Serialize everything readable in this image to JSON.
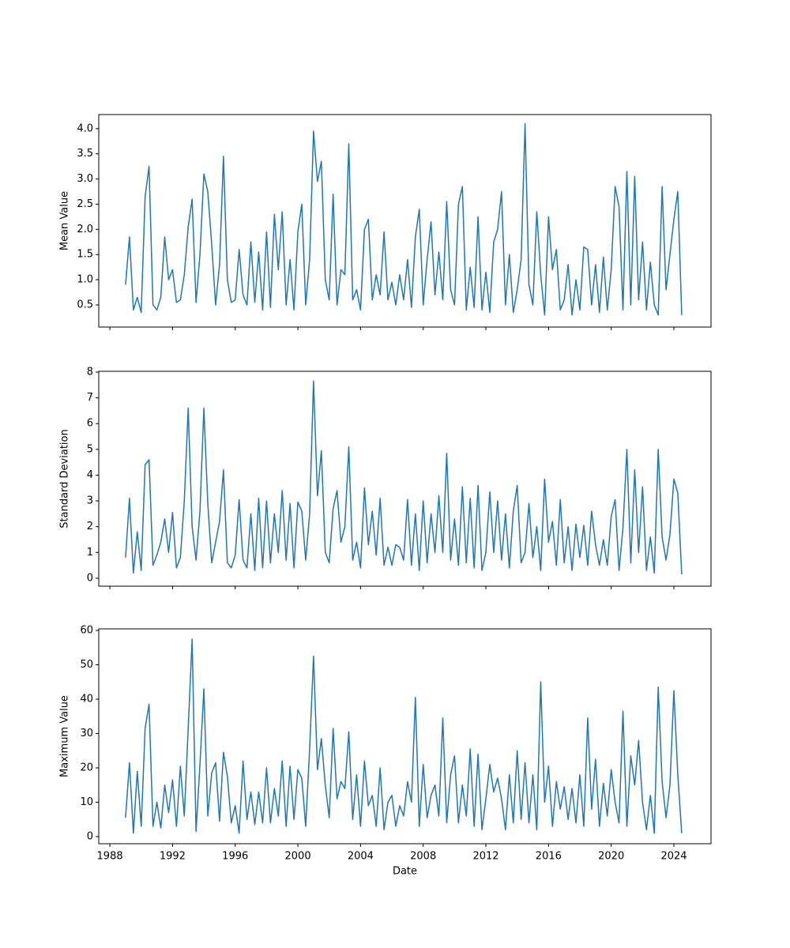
{
  "chart_data": [
    {
      "type": "line",
      "ylabel": "Mean Value",
      "color": "#1f77b4",
      "x": [
        1989,
        1989.25,
        1989.5,
        1989.75,
        1990,
        1990.25,
        1990.5,
        1990.75,
        1991,
        1991.25,
        1991.5,
        1991.75,
        1992,
        1992.25,
        1992.5,
        1992.75,
        1993,
        1993.25,
        1993.5,
        1993.75,
        1994,
        1994.25,
        1994.5,
        1994.75,
        1995,
        1995.25,
        1995.5,
        1995.75,
        1996,
        1996.25,
        1996.5,
        1996.75,
        1997,
        1997.25,
        1997.5,
        1997.75,
        1998,
        1998.25,
        1998.5,
        1998.75,
        1999,
        1999.25,
        1999.5,
        1999.75,
        2000,
        2000.25,
        2000.5,
        2000.75,
        2001,
        2001.25,
        2001.5,
        2001.75,
        2002,
        2002.25,
        2002.5,
        2002.75,
        2003,
        2003.25,
        2003.5,
        2003.75,
        2004,
        2004.25,
        2004.5,
        2004.75,
        2005,
        2005.25,
        2005.5,
        2005.75,
        2006,
        2006.25,
        2006.5,
        2006.75,
        2007,
        2007.25,
        2007.5,
        2007.75,
        2008,
        2008.25,
        2008.5,
        2008.75,
        2009,
        2009.25,
        2009.5,
        2009.75,
        2010,
        2010.25,
        2010.5,
        2010.75,
        2011,
        2011.25,
        2011.5,
        2011.75,
        2012,
        2012.25,
        2012.5,
        2012.75,
        2013,
        2013.25,
        2013.5,
        2013.75,
        2014,
        2014.25,
        2014.5,
        2014.75,
        2015,
        2015.25,
        2015.5,
        2015.75,
        2016,
        2016.25,
        2016.5,
        2016.75,
        2017,
        2017.25,
        2017.5,
        2017.75,
        2018,
        2018.25,
        2018.5,
        2018.75,
        2019,
        2019.25,
        2019.5,
        2019.75,
        2020,
        2020.25,
        2020.5,
        2020.75,
        2021,
        2021.25,
        2021.5,
        2021.75,
        2022,
        2022.25,
        2022.5,
        2022.75,
        2023,
        2023.25,
        2023.5,
        2023.75,
        2024,
        2024.25,
        2024.5
      ],
      "values": [
        0.9,
        1.85,
        0.4,
        0.65,
        0.35,
        2.65,
        3.25,
        0.5,
        0.4,
        0.65,
        1.85,
        1.0,
        1.2,
        0.55,
        0.6,
        1.1,
        2.05,
        2.6,
        0.55,
        1.5,
        3.1,
        2.75,
        1.7,
        0.5,
        1.3,
        3.45,
        1.0,
        0.55,
        0.6,
        1.6,
        0.7,
        0.5,
        1.75,
        0.55,
        1.55,
        0.4,
        1.95,
        0.45,
        2.3,
        1.2,
        2.35,
        0.5,
        1.4,
        0.4,
        1.95,
        2.5,
        0.5,
        1.4,
        3.95,
        2.95,
        3.35,
        1.0,
        0.6,
        2.7,
        0.5,
        1.2,
        1.1,
        3.7,
        0.6,
        0.8,
        0.4,
        2.0,
        2.2,
        0.6,
        1.1,
        0.7,
        1.95,
        0.6,
        0.95,
        0.5,
        1.1,
        0.6,
        1.4,
        0.45,
        1.85,
        2.4,
        0.5,
        1.4,
        2.15,
        0.7,
        1.55,
        0.6,
        2.55,
        0.8,
        0.5,
        2.5,
        2.85,
        0.4,
        1.25,
        0.45,
        2.25,
        0.4,
        1.15,
        0.35,
        1.75,
        2.0,
        2.75,
        0.5,
        1.5,
        0.35,
        0.8,
        1.4,
        4.1,
        0.9,
        0.5,
        2.35,
        1.1,
        0.3,
        2.25,
        1.2,
        1.6,
        0.4,
        0.6,
        1.3,
        0.3,
        1.0,
        0.4,
        1.65,
        1.6,
        0.5,
        1.3,
        0.35,
        1.45,
        0.4,
        1.2,
        2.85,
        2.45,
        0.4,
        3.15,
        0.5,
        3.05,
        0.6,
        1.75,
        0.4,
        1.35,
        0.5,
        0.3,
        2.85,
        0.8,
        1.5,
        2.2,
        2.75,
        0.3
      ],
      "ylim": [
        0.06,
        4.28
      ],
      "yticks": [
        0.5,
        {
          "value": 1,
          "label": "1.0"
        },
        1.5,
        {
          "value": 2,
          "label": "2.0"
        },
        2.5,
        {
          "value": 3,
          "label": "3.0"
        },
        3.5,
        {
          "value": 4,
          "label": "4.0"
        }
      ]
    },
    {
      "type": "line",
      "ylabel": "Standard Deviation",
      "color": "#1f77b4",
      "x": [
        1989,
        1989.25,
        1989.5,
        1989.75,
        1990,
        1990.25,
        1990.5,
        1990.75,
        1991,
        1991.25,
        1991.5,
        1991.75,
        1992,
        1992.25,
        1992.5,
        1992.75,
        1993,
        1993.25,
        1993.5,
        1993.75,
        1994,
        1994.25,
        1994.5,
        1994.75,
        1995,
        1995.25,
        1995.5,
        1995.75,
        1996,
        1996.25,
        1996.5,
        1996.75,
        1997,
        1997.25,
        1997.5,
        1997.75,
        1998,
        1998.25,
        1998.5,
        1998.75,
        1999,
        1999.25,
        1999.5,
        1999.75,
        2000,
        2000.25,
        2000.5,
        2000.75,
        2001,
        2001.25,
        2001.5,
        2001.75,
        2002,
        2002.25,
        2002.5,
        2002.75,
        2003,
        2003.25,
        2003.5,
        2003.75,
        2004,
        2004.25,
        2004.5,
        2004.75,
        2005,
        2005.25,
        2005.5,
        2005.75,
        2006,
        2006.25,
        2006.5,
        2006.75,
        2007,
        2007.25,
        2007.5,
        2007.75,
        2008,
        2008.25,
        2008.5,
        2008.75,
        2009,
        2009.25,
        2009.5,
        2009.75,
        2010,
        2010.25,
        2010.5,
        2010.75,
        2011,
        2011.25,
        2011.5,
        2011.75,
        2012,
        2012.25,
        2012.5,
        2012.75,
        2013,
        2013.25,
        2013.5,
        2013.75,
        2014,
        2014.25,
        2014.5,
        2014.75,
        2015,
        2015.25,
        2015.5,
        2015.75,
        2016,
        2016.25,
        2016.5,
        2016.75,
        2017,
        2017.25,
        2017.5,
        2017.75,
        2018,
        2018.25,
        2018.5,
        2018.75,
        2019,
        2019.25,
        2019.5,
        2019.75,
        2020,
        2020.25,
        2020.5,
        2020.75,
        2021,
        2021.25,
        2021.5,
        2021.75,
        2022,
        2022.25,
        2022.5,
        2022.75,
        2023,
        2023.25,
        2023.5,
        2023.75,
        2024,
        2024.25,
        2024.5
      ],
      "values": [
        0.8,
        3.1,
        0.2,
        1.8,
        0.3,
        4.4,
        4.6,
        0.5,
        0.9,
        1.4,
        2.3,
        1.0,
        2.55,
        0.4,
        0.8,
        3.0,
        6.6,
        2.0,
        0.7,
        2.6,
        6.6,
        2.9,
        0.6,
        1.4,
        2.2,
        4.2,
        0.6,
        0.4,
        0.9,
        3.05,
        0.7,
        0.4,
        2.5,
        0.3,
        3.1,
        0.4,
        3.0,
        0.6,
        2.5,
        1.0,
        3.4,
        0.7,
        2.9,
        0.4,
        2.95,
        2.6,
        0.7,
        2.5,
        7.65,
        3.2,
        4.95,
        1.0,
        0.6,
        2.7,
        3.4,
        1.4,
        2.0,
        5.1,
        0.7,
        1.4,
        0.4,
        3.5,
        1.3,
        2.6,
        0.9,
        3.1,
        0.5,
        1.2,
        0.5,
        1.3,
        1.2,
        0.7,
        3.05,
        0.5,
        2.5,
        0.3,
        3.0,
        0.6,
        2.5,
        1.0,
        3.2,
        1.0,
        4.85,
        0.7,
        2.3,
        0.5,
        3.55,
        0.6,
        3.1,
        0.4,
        3.6,
        0.3,
        1.0,
        3.35,
        1.0,
        3.0,
        0.7,
        2.5,
        0.4,
        2.6,
        3.6,
        0.6,
        1.0,
        2.9,
        0.8,
        2.0,
        0.3,
        3.85,
        1.4,
        2.2,
        0.5,
        3.05,
        0.6,
        2.0,
        0.3,
        2.1,
        0.8,
        2.05,
        0.5,
        2.6,
        1.3,
        0.5,
        1.5,
        0.5,
        2.4,
        3.05,
        0.3,
        1.95,
        5.0,
        0.6,
        4.2,
        1.0,
        3.55,
        0.3,
        1.6,
        0.2,
        5.0,
        1.6,
        0.7,
        1.7,
        3.85,
        3.3,
        0.15
      ],
      "ylim": [
        -0.31,
        8.03
      ],
      "yticks": [
        0,
        1,
        2,
        3,
        4,
        5,
        6,
        7,
        8
      ]
    },
    {
      "type": "line",
      "ylabel": "Maximum Value",
      "xlabel": "Date",
      "color": "#1f77b4",
      "x": [
        1989,
        1989.25,
        1989.5,
        1989.75,
        1990,
        1990.25,
        1990.5,
        1990.75,
        1991,
        1991.25,
        1991.5,
        1991.75,
        1992,
        1992.25,
        1992.5,
        1992.75,
        1993,
        1993.25,
        1993.5,
        1993.75,
        1994,
        1994.25,
        1994.5,
        1994.75,
        1995,
        1995.25,
        1995.5,
        1995.75,
        1996,
        1996.25,
        1996.5,
        1996.75,
        1997,
        1997.25,
        1997.5,
        1997.75,
        1998,
        1998.25,
        1998.5,
        1998.75,
        1999,
        1999.25,
        1999.5,
        1999.75,
        2000,
        2000.25,
        2000.5,
        2000.75,
        2001,
        2001.25,
        2001.5,
        2001.75,
        2002,
        2002.25,
        2002.5,
        2002.75,
        2003,
        2003.25,
        2003.5,
        2003.75,
        2004,
        2004.25,
        2004.5,
        2004.75,
        2005,
        2005.25,
        2005.5,
        2005.75,
        2006,
        2006.25,
        2006.5,
        2006.75,
        2007,
        2007.25,
        2007.5,
        2007.75,
        2008,
        2008.25,
        2008.5,
        2008.75,
        2009,
        2009.25,
        2009.5,
        2009.75,
        2010,
        2010.25,
        2010.5,
        2010.75,
        2011,
        2011.25,
        2011.5,
        2011.75,
        2012,
        2012.25,
        2012.5,
        2012.75,
        2013,
        2013.25,
        2013.5,
        2013.75,
        2014,
        2014.25,
        2014.5,
        2014.75,
        2015,
        2015.25,
        2015.5,
        2015.75,
        2016,
        2016.25,
        2016.5,
        2016.75,
        2017,
        2017.25,
        2017.5,
        2017.75,
        2018,
        2018.25,
        2018.5,
        2018.75,
        2019,
        2019.25,
        2019.5,
        2019.75,
        2020,
        2020.25,
        2020.5,
        2020.75,
        2021,
        2021.25,
        2021.5,
        2021.75,
        2022,
        2022.25,
        2022.5,
        2022.75,
        2023,
        2023.25,
        2023.5,
        2023.75,
        2024,
        2024.25,
        2024.5
      ],
      "values": [
        5.5,
        21.5,
        1,
        19,
        3,
        31.5,
        38.5,
        3,
        10,
        2.5,
        15,
        7,
        16.5,
        3,
        20.5,
        6,
        31.5,
        57.5,
        1.5,
        21,
        43,
        6,
        18.5,
        21.5,
        4.5,
        24.5,
        17.5,
        4,
        9,
        1,
        22,
        5,
        13,
        3.5,
        13,
        4,
        20,
        4,
        14,
        6,
        22,
        3,
        20.5,
        5,
        19.5,
        17,
        3,
        25.5,
        52.5,
        19.5,
        28.5,
        15,
        5.5,
        31.5,
        11,
        16,
        14,
        30.5,
        5,
        18,
        3,
        22,
        9,
        12,
        3,
        20,
        2,
        10,
        12,
        3,
        9,
        6,
        16,
        10,
        40.5,
        3,
        21,
        5.5,
        12,
        15,
        6,
        34.5,
        4,
        18,
        23.5,
        4,
        15,
        6,
        25.5,
        3,
        24,
        2,
        11,
        21,
        13,
        17,
        11,
        2,
        18,
        4,
        25,
        5,
        21.5,
        4,
        18,
        2,
        45,
        10,
        20.5,
        3,
        16,
        8,
        14.5,
        5,
        14,
        4,
        18,
        3,
        34.5,
        8,
        22.5,
        3,
        15.5,
        6,
        19.5,
        10,
        4,
        36.5,
        3,
        23.5,
        15,
        28,
        10,
        2,
        12,
        1,
        43.5,
        16,
        5.5,
        15,
        42.5,
        18,
        1
      ],
      "ylim": [
        -2.07,
        60.46
      ],
      "yticks": [
        0,
        10,
        20,
        30,
        40,
        50,
        60
      ],
      "xlim": [
        1987.29,
        2026.37
      ],
      "xticks": [
        1988,
        1992,
        1996,
        2000,
        2004,
        2008,
        2012,
        2016,
        2020,
        2024
      ]
    }
  ]
}
